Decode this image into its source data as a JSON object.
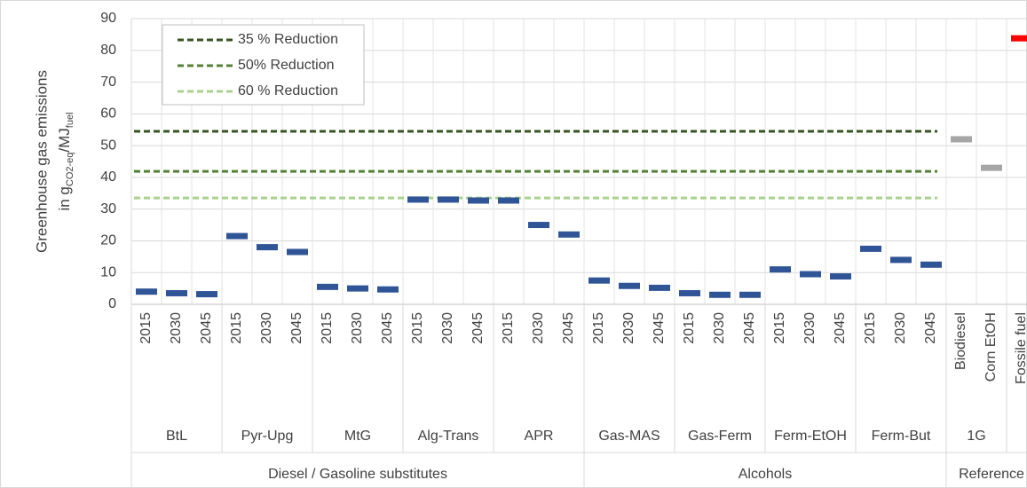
{
  "chart_data": {
    "type": "marker",
    "ylabel": {
      "line1": "Greenhouse gas emissions",
      "line2": [
        "in g",
        "CO2-eq",
        "/MJ",
        "fuel"
      ]
    },
    "categories": [
      "2015",
      "2030",
      "2045",
      "2015",
      "2030",
      "2045",
      "2015",
      "2030",
      "2045",
      "2015",
      "2030",
      "2045",
      "2015",
      "2030",
      "2045",
      "2015",
      "2030",
      "2045",
      "2015",
      "2030",
      "2045",
      "2015",
      "2030",
      "2045",
      "2015",
      "2030",
      "2045",
      "Biodiesel",
      "Corn EtOH",
      "Fossile fuel"
    ],
    "values": [
      4,
      3.5,
      3.2,
      21.5,
      18,
      16.5,
      5.5,
      5,
      4.7,
      33,
      33,
      32.7,
      32.7,
      25,
      22,
      7.5,
      5.8,
      5.2,
      3.5,
      3,
      3,
      11,
      9.5,
      8.8,
      17.5,
      14,
      12.5,
      52,
      43,
      83.8
    ],
    "colors": [
      "#2f5597",
      "#2f5597",
      "#2f5597",
      "#2f5597",
      "#2f5597",
      "#2f5597",
      "#2f5597",
      "#2f5597",
      "#2f5597",
      "#2f5597",
      "#2f5597",
      "#2f5597",
      "#2f5597",
      "#2f5597",
      "#2f5597",
      "#2f5597",
      "#2f5597",
      "#2f5597",
      "#2f5597",
      "#2f5597",
      "#2f5597",
      "#2f5597",
      "#2f5597",
      "#2f5597",
      "#2f5597",
      "#2f5597",
      "#2f5597",
      "#a6a6a6",
      "#a6a6a6",
      "#ff0000"
    ],
    "groups": [
      {
        "label": "BtL",
        "size": 3
      },
      {
        "label": "Pyr-Upg",
        "size": 3
      },
      {
        "label": "MtG",
        "size": 3
      },
      {
        "label": "Alg-Trans",
        "size": 3
      },
      {
        "label": "APR",
        "size": 3
      },
      {
        "label": "Gas-MAS",
        "size": 3
      },
      {
        "label": "Gas-Ferm",
        "size": 3
      },
      {
        "label": "Ferm-EtOH",
        "size": 3
      },
      {
        "label": "Ferm-But",
        "size": 3
      },
      {
        "label": "1G",
        "size": 2
      },
      {
        "label": null,
        "size": 1
      }
    ],
    "supergroups": [
      {
        "label": "Diesel / Gasoline substitutes",
        "size": 15
      },
      {
        "label": "Alcohols",
        "size": 12
      },
      {
        "label": "Reference",
        "size": 3
      }
    ],
    "series": [
      {
        "name": "35 % Reduction",
        "color": "#375623",
        "value": 54.5
      },
      {
        "name": "50% Reduction",
        "color": "#548235",
        "value": 41.9
      },
      {
        "name": "60 % Reduction",
        "color": "#a9d18e",
        "value": 33.5
      }
    ],
    "ylim": [
      0,
      90
    ],
    "yticks": [
      0,
      10,
      20,
      30,
      40,
      50,
      60,
      70,
      80,
      90
    ],
    "grid": true,
    "legend": "top-left"
  }
}
